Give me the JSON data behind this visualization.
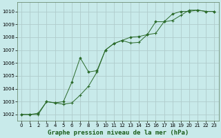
{
  "title": "Graphe pression niveau de la mer (hPa)",
  "bg_color": "#c8eaea",
  "grid_color": "#b0cccc",
  "line_color": "#2a6a2a",
  "xlim": [
    -0.5,
    23.5
  ],
  "ylim": [
    1001.5,
    1010.7
  ],
  "xticks": [
    0,
    1,
    2,
    3,
    4,
    5,
    6,
    7,
    8,
    9,
    10,
    11,
    12,
    13,
    14,
    15,
    16,
    17,
    18,
    19,
    20,
    21,
    22,
    23
  ],
  "yticks": [
    1002,
    1003,
    1004,
    1005,
    1006,
    1007,
    1008,
    1009,
    1010
  ],
  "series1_x": [
    0,
    1,
    2,
    3,
    4,
    5,
    6,
    7,
    8,
    9,
    10,
    11,
    12,
    13,
    14,
    15,
    16,
    17,
    18,
    19,
    20,
    21,
    22,
    23
  ],
  "series1_y": [
    1002.0,
    1002.0,
    1002.0,
    1003.0,
    1002.9,
    1002.8,
    1002.9,
    1003.5,
    1004.2,
    1005.3,
    1007.0,
    1007.5,
    1007.75,
    1007.55,
    1007.6,
    1008.2,
    1008.3,
    1009.2,
    1009.3,
    1009.7,
    1010.1,
    1010.1,
    1010.0,
    1010.0
  ],
  "series2_x": [
    0,
    1,
    2,
    3,
    4,
    5,
    6,
    7,
    8,
    9,
    10,
    11,
    12,
    13,
    14,
    15,
    16,
    17,
    18,
    19,
    20,
    21,
    22,
    23
  ],
  "series2_y": [
    1002.0,
    1002.0,
    1002.1,
    1003.0,
    1002.9,
    1003.0,
    1004.5,
    1006.4,
    1005.3,
    1005.4,
    1007.0,
    1007.5,
    1007.75,
    1008.0,
    1008.05,
    1008.2,
    1009.2,
    1009.2,
    1009.8,
    1010.0,
    1010.0,
    1010.1,
    1010.0,
    1010.0
  ],
  "title_fontsize": 6.5,
  "tick_fontsize": 5.0
}
